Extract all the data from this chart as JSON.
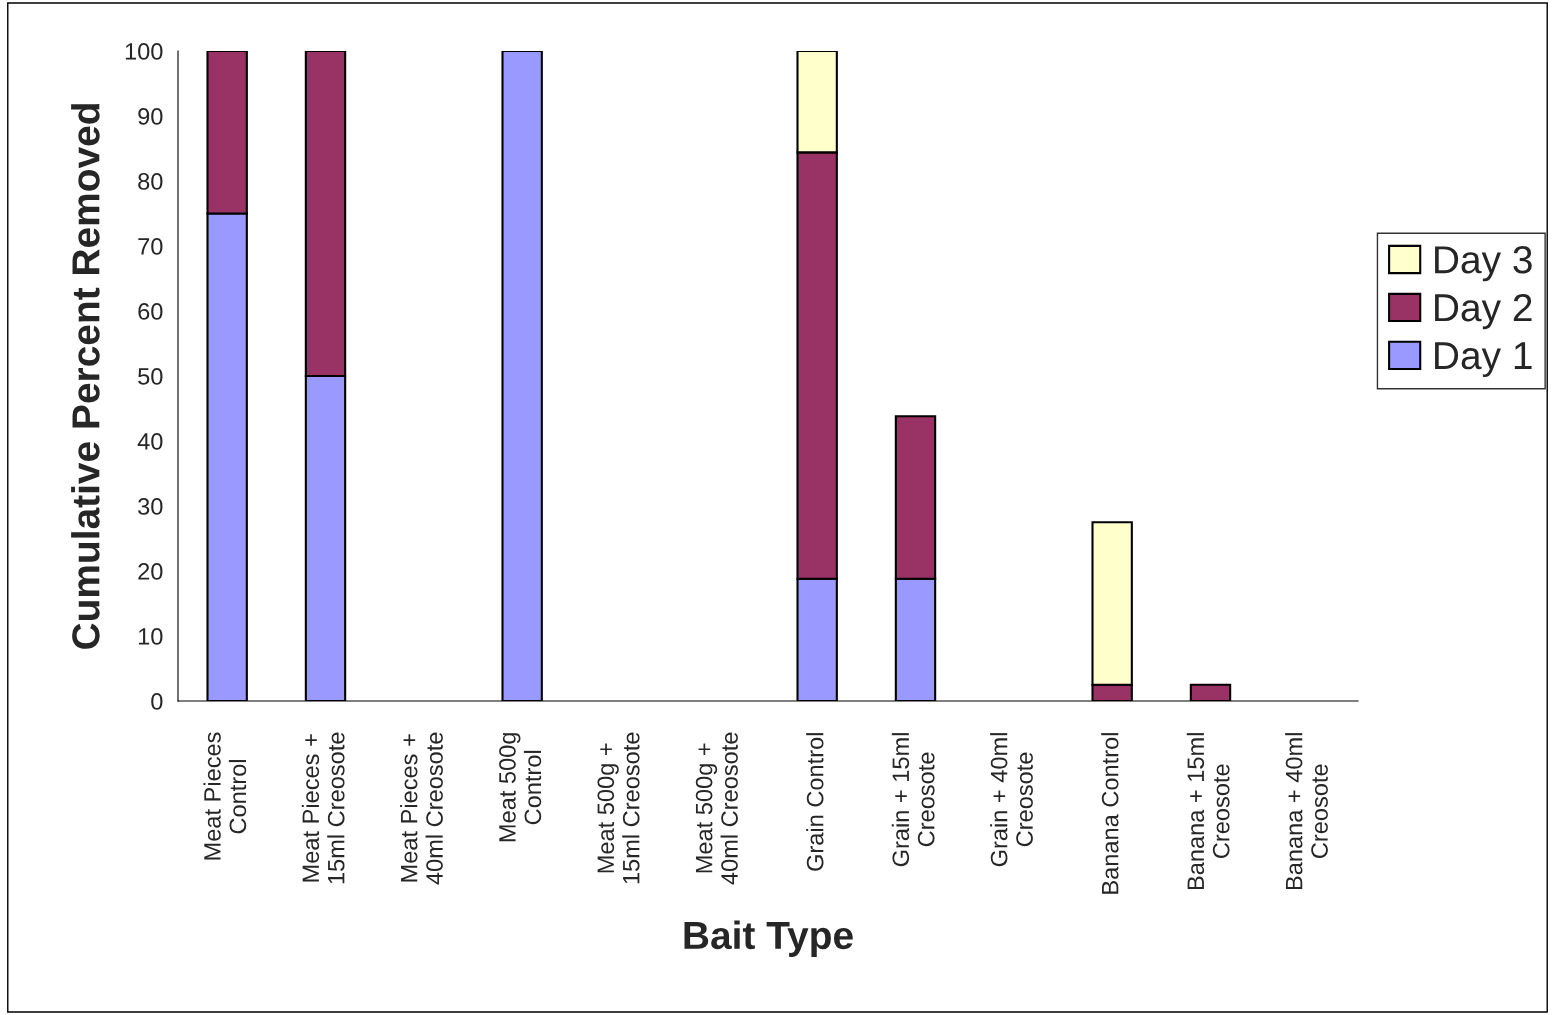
{
  "chart_data": {
    "type": "bar",
    "stacked": true,
    "xlabel": "Bait Type",
    "ylabel": "Cumulative Percent Removed",
    "categories": [
      "Meat Pieces\nControl",
      "Meat Pieces +\n15ml Creosote",
      "Meat Pieces +\n40ml Creosote",
      "Meat 500g\nControl",
      "Meat 500g +\n15ml Creosote",
      "Meat 500g +\n40ml Creosote",
      "Grain Control",
      "Grain + 15ml\nCreosote",
      "Grain + 40ml\nCreosote",
      "Banana Control",
      "Banana + 15ml\nCreosote",
      "Banana + 40ml\nCreosote"
    ],
    "series": [
      {
        "name": "Day 1",
        "color": "#9999ff",
        "values": [
          75,
          50,
          0,
          100,
          0,
          0,
          18.8,
          18.8,
          0,
          0,
          0,
          0
        ]
      },
      {
        "name": "Day 2",
        "color": "#993366",
        "values": [
          25,
          50,
          0,
          0,
          0,
          0,
          65.6,
          25,
          0,
          2.5,
          2.5,
          0
        ]
      },
      {
        "name": "Day 3",
        "color": "#ffffcc",
        "values": [
          0,
          0,
          0,
          0,
          0,
          0,
          15.6,
          0,
          0,
          25,
          0,
          0
        ]
      }
    ],
    "ylim": [
      0,
      100
    ],
    "yticks": [
      0,
      10,
      20,
      30,
      40,
      50,
      60,
      70,
      80,
      90,
      100
    ],
    "grid": false,
    "legend": "right"
  }
}
